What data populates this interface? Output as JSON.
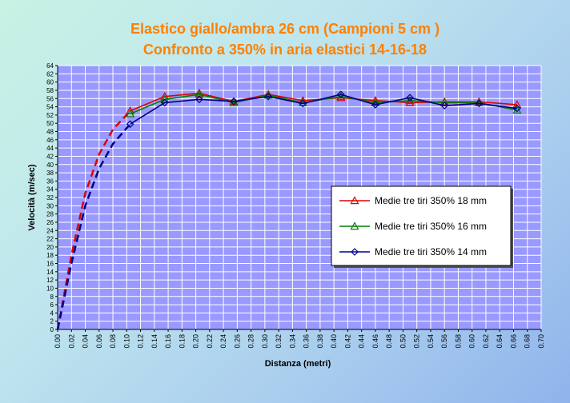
{
  "chart_data": {
    "type": "line",
    "title": "Elastico giallo/ambra  26 cm (Campioni 5 cm )",
    "subtitle": "Confronto a 350% in aria elastici 14-16-18",
    "xlabel": "Distanza (metri)",
    "ylabel": "Velocità (m/sec)",
    "xlim": [
      0,
      0.7
    ],
    "ylim": [
      0,
      64
    ],
    "x_ticks": [
      "0.00",
      "0.02",
      "0.04",
      "0.06",
      "0.08",
      "0.10",
      "0.12",
      "0.14",
      "0.16",
      "0.18",
      "0.20",
      "0.22",
      "0.24",
      "0.26",
      "0.28",
      "0.30",
      "0.32",
      "0.34",
      "0.36",
      "0.38",
      "0.40",
      "0.42",
      "0.44",
      "0.46",
      "0.48",
      "0.50",
      "0.52",
      "0.54",
      "0.56",
      "0.58",
      "0.60",
      "0.62",
      "0.64",
      "0.66",
      "0.68",
      "0.70"
    ],
    "y_ticks": [
      "0",
      "2",
      "4",
      "6",
      "8",
      "10",
      "12",
      "14",
      "16",
      "18",
      "20",
      "22",
      "24",
      "26",
      "28",
      "30",
      "32",
      "34",
      "36",
      "38",
      "40",
      "42",
      "44",
      "46",
      "48",
      "50",
      "52",
      "54",
      "56",
      "58",
      "60",
      "62",
      "64"
    ],
    "grid": true,
    "legend_position": "right",
    "series": [
      {
        "name": "Medie tre tiri 350% 18 mm",
        "color": "#e00000",
        "marker": "triangle",
        "x": [
          0.105,
          0.155,
          0.205,
          0.255,
          0.305,
          0.355,
          0.41,
          0.46,
          0.51,
          0.56,
          0.61,
          0.665
        ],
        "y": [
          53.0,
          56.5,
          57.3,
          55.3,
          57.0,
          55.5,
          56.2,
          55.5,
          55.0,
          55.2,
          55.2,
          54.5
        ],
        "extrapolation": {
          "x": [
            0.0,
            0.02,
            0.04,
            0.06,
            0.08,
            0.105
          ],
          "y": [
            0.0,
            18.0,
            33.0,
            42.5,
            48.5,
            53.0
          ]
        }
      },
      {
        "name": "Medie tre tiri 350% 16 mm",
        "color": "#008000",
        "marker": "triangle",
        "x": [
          0.105,
          0.155,
          0.205,
          0.255,
          0.305,
          0.355,
          0.41,
          0.46,
          0.51,
          0.56,
          0.61,
          0.665
        ],
        "y": [
          52.3,
          55.8,
          57.0,
          55.0,
          56.8,
          55.0,
          56.5,
          55.0,
          55.5,
          55.0,
          55.0,
          53.2
        ],
        "extrapolation": null
      },
      {
        "name": "Medie tre tiri 350% 14 mm",
        "color": "#00008b",
        "marker": "diamond",
        "x": [
          0.105,
          0.155,
          0.205,
          0.255,
          0.305,
          0.355,
          0.41,
          0.46,
          0.51,
          0.56,
          0.61,
          0.665
        ],
        "y": [
          49.8,
          55.0,
          55.8,
          55.3,
          56.5,
          54.8,
          57.0,
          54.5,
          56.2,
          54.3,
          54.8,
          53.6
        ],
        "extrapolation": {
          "x": [
            0.0,
            0.02,
            0.04,
            0.06,
            0.08,
            0.105
          ],
          "y": [
            0.0,
            16.0,
            30.0,
            39.0,
            45.0,
            49.8
          ]
        }
      }
    ]
  },
  "colors": {
    "plot_background": "#9999ff",
    "gridline": "#ffffff",
    "title": "#ff8000",
    "legend_background": "#ffffff"
  }
}
